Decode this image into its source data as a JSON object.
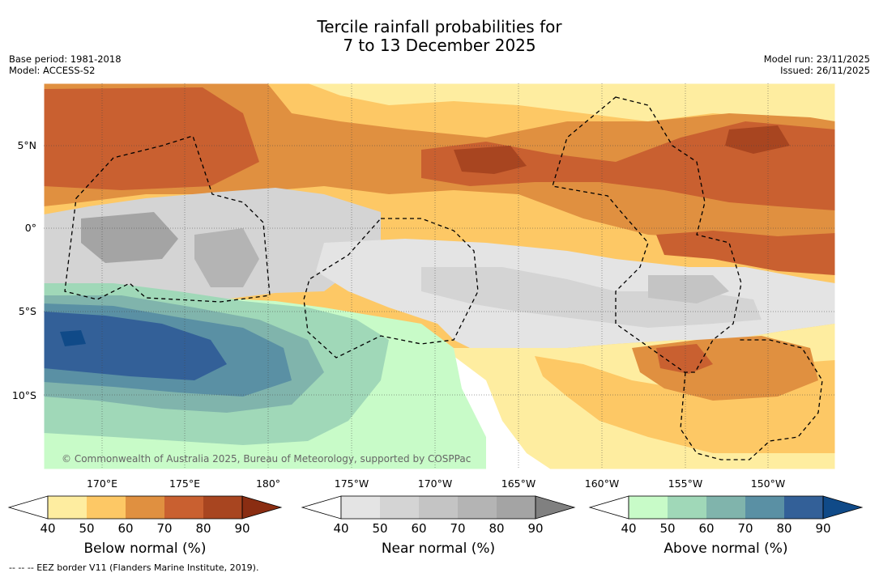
{
  "header": {
    "title_line1": "Tercile rainfall probabilities for",
    "title_line2": "7 to 13 December 2025",
    "base_period": "Base period: 1981-2018",
    "model": "Model: ACCESS-S2",
    "model_run": "Model run: 23/11/2025",
    "issued": "Issued: 26/11/2025"
  },
  "map": {
    "lat_labels": [
      "5°N",
      "0°",
      "5°S",
      "10°S"
    ],
    "lon_labels": [
      "170°E",
      "175°E",
      "180°",
      "175°W",
      "170°W",
      "165°W",
      "160°W",
      "155°W",
      "150°W"
    ],
    "copyright": "© Commonwealth of Australia 2025, Bureau of Meteorology, supported by COSPPac"
  },
  "colorbars": [
    {
      "name": "below-normal",
      "label": "Below normal (%)",
      "ticks": [
        "40",
        "50",
        "60",
        "70",
        "80",
        "90"
      ],
      "colors": [
        "#ffffff",
        "#feeda0",
        "#fdc865",
        "#e09040",
        "#c96030",
        "#a84520",
        "#8a2d12"
      ]
    },
    {
      "name": "near-normal",
      "label": "Near normal (%)",
      "ticks": [
        "40",
        "50",
        "60",
        "70",
        "80",
        "90"
      ],
      "colors": [
        "#ffffff",
        "#e4e4e4",
        "#d4d4d4",
        "#c4c4c4",
        "#b4b4b4",
        "#a4a4a4",
        "#808080"
      ]
    },
    {
      "name": "above-normal",
      "label": "Above normal (%)",
      "ticks": [
        "40",
        "50",
        "60",
        "70",
        "80",
        "90"
      ],
      "colors": [
        "#ffffff",
        "#c8fbc8",
        "#a0d8b8",
        "#80b4ac",
        "#5a90a4",
        "#336098",
        "#104a88"
      ]
    }
  ],
  "footnote": "--  --  -- EEZ border V11 (Flanders Marine Institute, 2019)."
}
